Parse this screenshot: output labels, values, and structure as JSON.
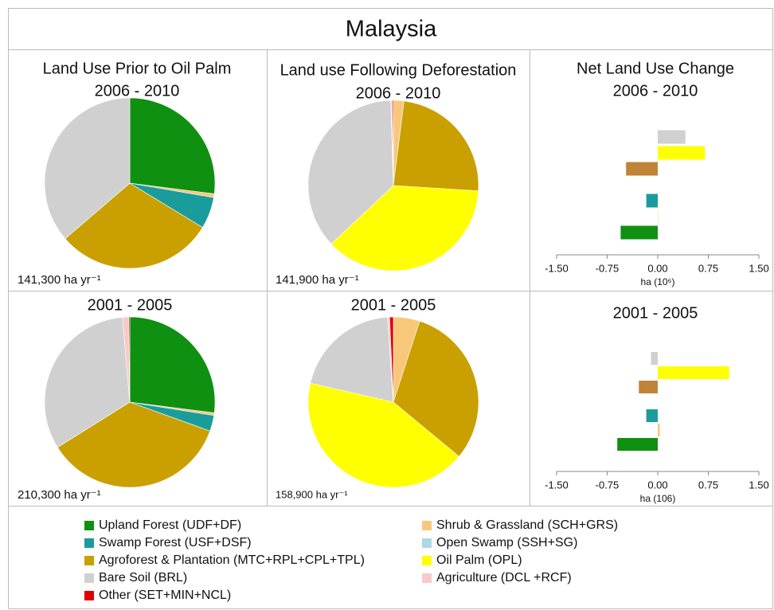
{
  "title": "Malaysia",
  "legend": {
    "items": [
      {
        "label": "Upland Forest (UDF+DF)",
        "color": "#109010"
      },
      {
        "label": "Shrub & Grassland (SCH+GRS)",
        "color": "#f9c77a"
      },
      {
        "label": "Swamp Forest (USF+DSF)",
        "color": "#1a9c9c"
      },
      {
        "label": "Open Swamp (SSH+SG)",
        "color": "#add8e6"
      },
      {
        "label": "Agroforest &  Plantation (MTC+RPL+CPL+TPL)",
        "color": "#c9a000"
      },
      {
        "label": "Oil Palm (OPL)",
        "color": "#ffff00"
      },
      {
        "label": "Bare Soil (BRL)",
        "color": "#d0d0d0"
      },
      {
        "label": "Agriculture (DCL +RCF)",
        "color": "#f9c9c9"
      },
      {
        "label": "Other (SET+MIN+NCL)",
        "color": "#e00000"
      }
    ]
  },
  "chart_data": [
    {
      "type": "pie",
      "title": "Land Use Prior to Oil Palm",
      "subtitle": "2006 - 2010",
      "note": "141,300 ha yr⁻¹",
      "values": [
        27,
        0.7,
        6,
        0,
        30,
        0,
        36.3,
        0,
        0
      ]
    },
    {
      "type": "pie",
      "title": "Land use Following Deforestation",
      "subtitle": "2006 - 2010",
      "note": "141,900 ha yr⁻¹",
      "values": [
        0,
        2,
        0,
        0,
        24,
        37,
        36.5,
        0.3,
        0.2
      ]
    },
    {
      "type": "bar",
      "title": "Net Land Use Change",
      "subtitle": "2006 - 2010",
      "xlabel": "ha (10⁶)",
      "values": [
        -0.55,
        0.005,
        -0.17,
        0,
        -0.47,
        0.7,
        0.41
      ],
      "colors": [
        "#109010",
        "#f9c77a",
        "#1a9c9c",
        "#add8e6",
        "#c08438",
        "#ffff00",
        "#d0d0d0"
      ],
      "xlim": [
        -1.5,
        1.5
      ],
      "xticks": [
        {
          "value": -1.5,
          "label": "-1.50"
        },
        {
          "value": -0.75,
          "label": "-0.75"
        },
        {
          "value": 0,
          "label": "0.00"
        },
        {
          "value": 0.75,
          "label": "0.75"
        },
        {
          "value": 1.5,
          "label": "1.50"
        }
      ]
    },
    {
      "type": "pie",
      "title": "2001 - 2005",
      "note": "210,300 ha yr⁻¹",
      "values": [
        27,
        0.5,
        3,
        0,
        35.6,
        0,
        32.5,
        1.2,
        0.2
      ]
    },
    {
      "type": "pie",
      "title": "2001 - 2005",
      "note": "158,900 ha yr⁻¹",
      "values": [
        0,
        5,
        0,
        0,
        31,
        42.6,
        20.3,
        0.4,
        0.7
      ]
    },
    {
      "type": "bar",
      "title": "2001 - 2005",
      "xlabel": "ha (106)",
      "values": [
        -0.6,
        0.03,
        -0.17,
        0,
        -0.28,
        1.06,
        -0.1
      ],
      "colors": [
        "#109010",
        "#f9c77a",
        "#1a9c9c",
        "#add8e6",
        "#c08438",
        "#ffff00",
        "#d0d0d0"
      ],
      "xlim": [
        -1.5,
        1.5
      ],
      "xticks": [
        {
          "value": -1.5,
          "label": "-1.50"
        },
        {
          "value": -0.75,
          "label": "-0.75"
        },
        {
          "value": 0,
          "label": "0.00"
        },
        {
          "value": 0.75,
          "label": "0.75"
        },
        {
          "value": 1.5,
          "label": "1.50"
        }
      ]
    }
  ]
}
